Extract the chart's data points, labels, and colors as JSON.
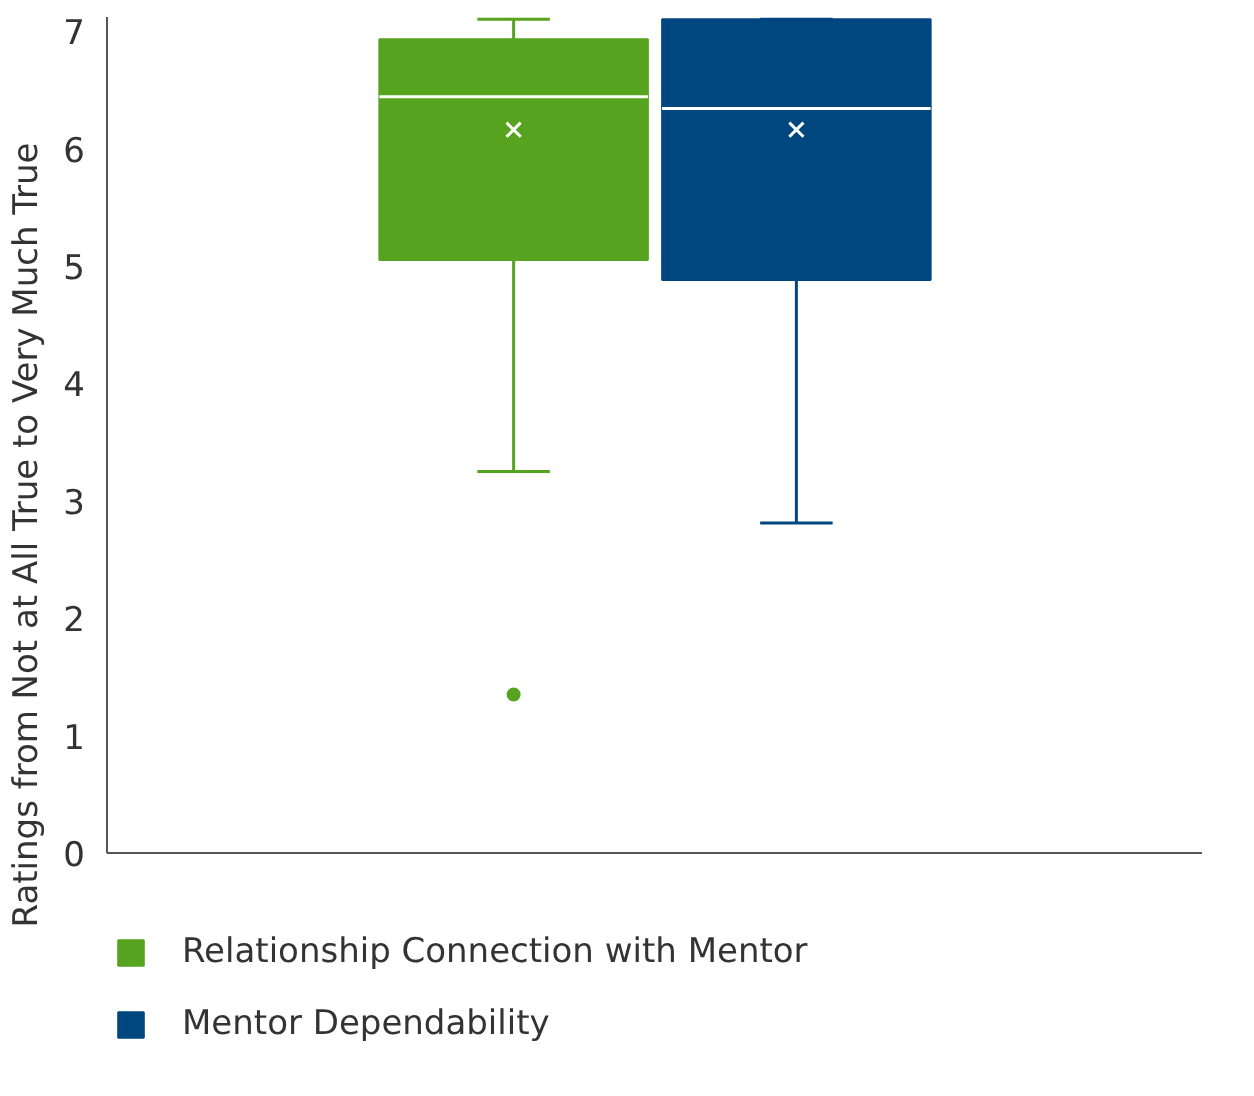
{
  "chart_data": {
    "type": "box",
    "ylabel": "Ratings from Not at All True to Very Much True",
    "categories": [
      null
    ],
    "series": [
      {
        "name": "Relationship Connection with Mentor",
        "color": "#56a31f",
        "boxes": [
          {
            "low": 3.25,
            "q1": 5.05,
            "median": 6.44,
            "q3": 6.93,
            "high": 7.1,
            "mean": 6.16,
            "outliers": [
              1.35
            ]
          }
        ]
      },
      {
        "name": "Mentor Dependability",
        "color": "#00467f",
        "boxes": [
          {
            "low": 2.81,
            "q1": 4.88,
            "median": 6.34,
            "q3": 7.1,
            "high": 7.1,
            "mean": 6.16
          }
        ]
      }
    ],
    "ylim": [
      0,
      7.12
    ],
    "yticks": [
      0,
      1,
      2,
      3,
      4,
      5,
      6,
      7
    ],
    "grid": false,
    "legend": "bottom"
  }
}
